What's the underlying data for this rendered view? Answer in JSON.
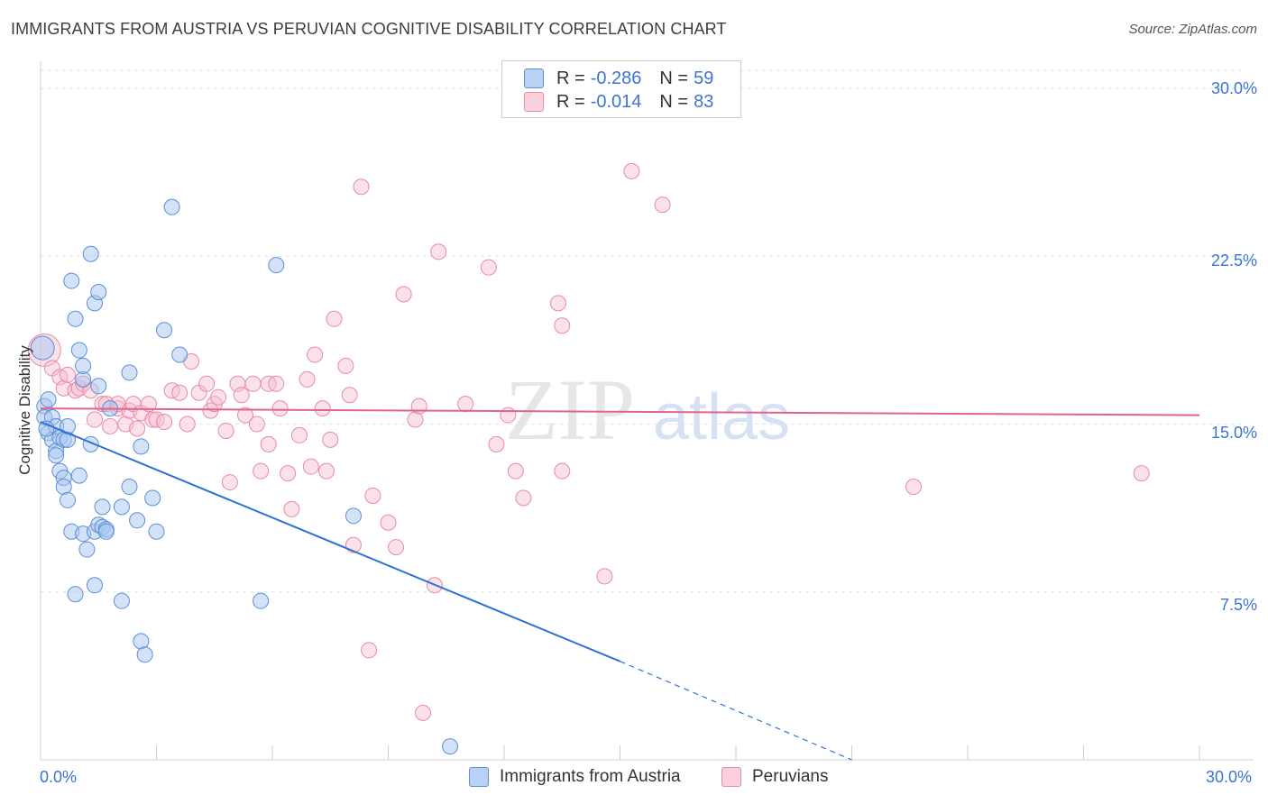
{
  "header": {
    "title": "IMMIGRANTS FROM AUSTRIA VS PERUVIAN COGNITIVE DISABILITY CORRELATION CHART",
    "source": "Source: ZipAtlas.com"
  },
  "watermark": {
    "zip": "ZIP",
    "atlas": "atlas"
  },
  "colors": {
    "blue_fill": "#a9c6ef",
    "blue_stroke": "#5b8fd9",
    "blue_line": "#2f72d6",
    "pink_fill": "#f6bccd",
    "pink_stroke": "#e98aa8",
    "pink_line": "#e0658d",
    "axis_text": "#3b74d1",
    "grid": "#e2e2e2"
  },
  "legend": {
    "rows": [
      {
        "r_label": "R =",
        "r_value": "-0.286",
        "n_label": "N =",
        "n_value": "59"
      },
      {
        "r_label": "R =",
        "r_value": "-0.014",
        "n_label": "N =",
        "n_value": "83"
      }
    ]
  },
  "bottom_legend": {
    "series1": "Immigrants from Austria",
    "series2": "Peruvians"
  },
  "chart_data": {
    "type": "scatter",
    "title": "IMMIGRANTS FROM AUSTRIA VS PERUVIAN COGNITIVE DISABILITY CORRELATION CHART",
    "xlabel": "",
    "ylabel": "Cognitive Disability",
    "xlim": [
      0,
      30
    ],
    "ylim": [
      0,
      30
    ],
    "x_tick_labels": [
      "0.0%",
      "30.0%"
    ],
    "y_tick_labels": [
      "7.5%",
      "15.0%",
      "22.5%",
      "30.0%"
    ],
    "y_ticks": [
      7.5,
      15,
      22.5,
      30
    ],
    "grid": true,
    "series": [
      {
        "name": "Immigrants from Austria",
        "color": "#5b8fd9",
        "r": -0.286,
        "n": 59,
        "trend": {
          "x0": 0,
          "y0": 15.1,
          "x1": 15,
          "y1": 4.4,
          "dash_to_x": 21,
          "dash_to_y": 0.0
        },
        "points": [
          [
            0.1,
            15.8
          ],
          [
            0.1,
            15.3
          ],
          [
            0.2,
            14.6
          ],
          [
            0.2,
            16.1
          ],
          [
            0.3,
            14.3
          ],
          [
            0.3,
            15.3
          ],
          [
            0.4,
            13.8
          ],
          [
            0.4,
            13.6
          ],
          [
            0.4,
            14.9
          ],
          [
            0.5,
            14.4
          ],
          [
            0.5,
            12.9
          ],
          [
            0.6,
            12.6
          ],
          [
            0.6,
            12.2
          ],
          [
            0.6,
            14.3
          ],
          [
            0.7,
            14.3
          ],
          [
            0.7,
            11.6
          ],
          [
            0.7,
            14.9
          ],
          [
            0.8,
            10.2
          ],
          [
            0.8,
            21.4
          ],
          [
            0.9,
            19.7
          ],
          [
            0.9,
            7.4
          ],
          [
            1.0,
            12.7
          ],
          [
            1.0,
            18.3
          ],
          [
            1.1,
            10.1
          ],
          [
            1.1,
            17.0
          ],
          [
            1.1,
            17.6
          ],
          [
            1.2,
            9.4
          ],
          [
            1.3,
            22.6
          ],
          [
            1.3,
            14.1
          ],
          [
            1.4,
            20.4
          ],
          [
            1.4,
            10.2
          ],
          [
            1.5,
            10.5
          ],
          [
            1.4,
            7.8
          ],
          [
            1.5,
            16.7
          ],
          [
            1.5,
            20.9
          ],
          [
            1.6,
            10.4
          ],
          [
            1.6,
            11.3
          ],
          [
            1.7,
            10.3
          ],
          [
            1.7,
            10.2
          ],
          [
            1.8,
            15.7
          ],
          [
            2.1,
            11.3
          ],
          [
            2.1,
            7.1
          ],
          [
            2.3,
            17.3
          ],
          [
            2.3,
            12.2
          ],
          [
            2.5,
            10.7
          ],
          [
            2.6,
            14.0
          ],
          [
            2.6,
            5.3
          ],
          [
            2.7,
            4.7
          ],
          [
            2.9,
            11.7
          ],
          [
            3.0,
            10.2
          ],
          [
            3.2,
            19.2
          ],
          [
            3.4,
            24.7
          ],
          [
            3.6,
            18.1
          ],
          [
            5.7,
            7.1
          ],
          [
            6.1,
            22.1
          ],
          [
            8.1,
            10.9
          ],
          [
            10.6,
            0.6
          ],
          [
            0.05,
            18.4
          ],
          [
            0.15,
            14.8
          ]
        ]
      },
      {
        "name": "Peruvians",
        "color": "#e98aa8",
        "r": -0.014,
        "n": 83,
        "trend": {
          "x0": 0,
          "y0": 15.7,
          "x1": 30,
          "y1": 15.4
        },
        "points": [
          [
            0.1,
            18.3
          ],
          [
            0.3,
            17.5
          ],
          [
            0.5,
            17.1
          ],
          [
            0.6,
            16.6
          ],
          [
            0.7,
            17.2
          ],
          [
            0.9,
            16.5
          ],
          [
            1.0,
            16.6
          ],
          [
            1.1,
            16.8
          ],
          [
            1.3,
            16.5
          ],
          [
            1.4,
            15.2
          ],
          [
            1.6,
            15.9
          ],
          [
            1.7,
            15.9
          ],
          [
            1.8,
            14.9
          ],
          [
            2.0,
            15.7
          ],
          [
            2.0,
            15.9
          ],
          [
            2.2,
            15.0
          ],
          [
            2.3,
            15.6
          ],
          [
            2.4,
            15.9
          ],
          [
            2.5,
            14.8
          ],
          [
            2.6,
            15.5
          ],
          [
            2.8,
            15.9
          ],
          [
            2.9,
            15.2
          ],
          [
            3.0,
            15.2
          ],
          [
            3.2,
            15.1
          ],
          [
            3.4,
            16.5
          ],
          [
            3.6,
            16.4
          ],
          [
            3.8,
            15.0
          ],
          [
            3.9,
            17.8
          ],
          [
            4.1,
            16.4
          ],
          [
            4.3,
            16.8
          ],
          [
            4.4,
            15.6
          ],
          [
            4.5,
            15.9
          ],
          [
            4.6,
            16.2
          ],
          [
            4.8,
            14.7
          ],
          [
            4.9,
            12.4
          ],
          [
            5.1,
            16.8
          ],
          [
            5.2,
            16.3
          ],
          [
            5.3,
            15.4
          ],
          [
            5.5,
            16.8
          ],
          [
            5.6,
            15.0
          ],
          [
            5.7,
            12.9
          ],
          [
            5.9,
            14.1
          ],
          [
            5.9,
            16.8
          ],
          [
            6.1,
            16.8
          ],
          [
            6.2,
            15.7
          ],
          [
            6.4,
            12.8
          ],
          [
            6.5,
            11.2
          ],
          [
            6.7,
            14.5
          ],
          [
            6.9,
            17.0
          ],
          [
            7.0,
            13.1
          ],
          [
            7.1,
            18.1
          ],
          [
            7.3,
            15.7
          ],
          [
            7.4,
            12.9
          ],
          [
            7.5,
            14.3
          ],
          [
            7.6,
            19.7
          ],
          [
            7.9,
            17.6
          ],
          [
            8.0,
            16.3
          ],
          [
            8.1,
            9.6
          ],
          [
            8.3,
            25.6
          ],
          [
            8.6,
            11.8
          ],
          [
            9.0,
            10.6
          ],
          [
            9.2,
            9.5
          ],
          [
            9.4,
            20.8
          ],
          [
            9.7,
            15.2
          ],
          [
            9.8,
            15.8
          ],
          [
            9.9,
            2.1
          ],
          [
            10.2,
            7.8
          ],
          [
            10.3,
            22.7
          ],
          [
            11.0,
            15.9
          ],
          [
            11.6,
            22.0
          ],
          [
            11.8,
            14.1
          ],
          [
            12.1,
            15.4
          ],
          [
            12.3,
            12.9
          ],
          [
            12.5,
            11.7
          ],
          [
            13.4,
            20.4
          ],
          [
            13.5,
            19.4
          ],
          [
            13.5,
            12.9
          ],
          [
            14.6,
            8.2
          ],
          [
            15.3,
            26.3
          ],
          [
            16.1,
            24.8
          ],
          [
            22.6,
            12.2
          ],
          [
            28.5,
            12.8
          ],
          [
            8.5,
            4.9
          ]
        ]
      }
    ]
  }
}
